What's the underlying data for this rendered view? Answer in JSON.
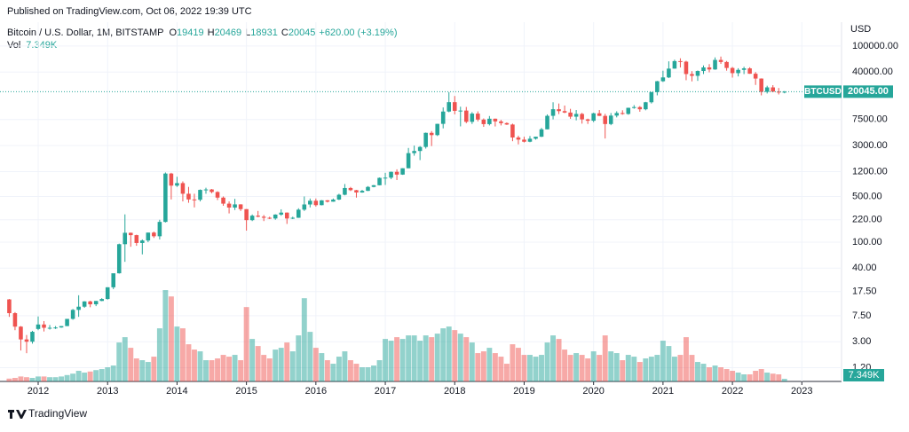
{
  "chart_data": {
    "type": "candlestick",
    "published": "Published on TradingView.com, Oct 06, 2022 19:39 UTC",
    "title": "Bitcoin / U.S. Dollar, 1M, BITSTAMP",
    "ohlc_legend": [
      {
        "label": "O",
        "value": "19419"
      },
      {
        "label": "H",
        "value": "20469"
      },
      {
        "label": "L",
        "value": "18931"
      },
      {
        "label": "C",
        "value": "20045"
      }
    ],
    "change": "+620.00 (+3.19%)",
    "volume_name": "Vol",
    "volume_value": "7.349K",
    "currency": "USD",
    "symbol": "BTCUSD",
    "last_price": {
      "value": 20045,
      "label": "20045.00"
    },
    "brand": "TradingView",
    "up_color": "#26a69a",
    "down_color": "#ef5350",
    "log_scale": true,
    "grid": true,
    "xlim": [
      "2011-07",
      "2023-07"
    ],
    "xticks": [
      2012,
      2013,
      2014,
      2015,
      2016,
      2017,
      2018,
      2019,
      2020,
      2021,
      2022,
      2023
    ],
    "ylim": [
      0.74,
      231700
    ],
    "yticks": [
      {
        "value": 100000,
        "label": "100000.00"
      },
      {
        "value": 40000,
        "label": "40000.00"
      },
      {
        "value": 7500,
        "label": "7500.00"
      },
      {
        "value": 3000,
        "label": "3000.00"
      },
      {
        "value": 1200,
        "label": "1200.00"
      },
      {
        "value": 500,
        "label": "500.00"
      },
      {
        "value": 220,
        "label": "220.00"
      },
      {
        "value": 100,
        "label": "100.00"
      },
      {
        "value": 40,
        "label": "40.00"
      },
      {
        "value": 17.5,
        "label": "17.50"
      },
      {
        "value": 7.5,
        "label": "7.50"
      },
      {
        "value": 3,
        "label": "3.00"
      },
      {
        "value": 1.2,
        "label": "1.20"
      }
    ],
    "x": [
      "2011-08",
      "2011-09",
      "2011-10",
      "2011-11",
      "2011-12",
      "2012-01",
      "2012-02",
      "2012-03",
      "2012-04",
      "2012-05",
      "2012-06",
      "2012-07",
      "2012-08",
      "2012-09",
      "2012-10",
      "2012-11",
      "2012-12",
      "2013-01",
      "2013-02",
      "2013-03",
      "2013-04",
      "2013-05",
      "2013-06",
      "2013-07",
      "2013-08",
      "2013-09",
      "2013-10",
      "2013-11",
      "2013-12",
      "2014-01",
      "2014-02",
      "2014-03",
      "2014-04",
      "2014-05",
      "2014-06",
      "2014-07",
      "2014-08",
      "2014-09",
      "2014-10",
      "2014-11",
      "2014-12",
      "2015-01",
      "2015-02",
      "2015-03",
      "2015-04",
      "2015-05",
      "2015-06",
      "2015-07",
      "2015-08",
      "2015-09",
      "2015-10",
      "2015-11",
      "2015-12",
      "2016-01",
      "2016-02",
      "2016-03",
      "2016-04",
      "2016-05",
      "2016-06",
      "2016-07",
      "2016-08",
      "2016-09",
      "2016-10",
      "2016-11",
      "2016-12",
      "2017-01",
      "2017-02",
      "2017-03",
      "2017-04",
      "2017-05",
      "2017-06",
      "2017-07",
      "2017-08",
      "2017-09",
      "2017-10",
      "2017-11",
      "2017-12",
      "2018-01",
      "2018-02",
      "2018-03",
      "2018-04",
      "2018-05",
      "2018-06",
      "2018-07",
      "2018-08",
      "2018-09",
      "2018-10",
      "2018-11",
      "2018-12",
      "2019-01",
      "2019-02",
      "2019-03",
      "2019-04",
      "2019-05",
      "2019-06",
      "2019-07",
      "2019-08",
      "2019-09",
      "2019-10",
      "2019-11",
      "2019-12",
      "2020-01",
      "2020-02",
      "2020-03",
      "2020-04",
      "2020-05",
      "2020-06",
      "2020-07",
      "2020-08",
      "2020-09",
      "2020-10",
      "2020-11",
      "2020-12",
      "2021-01",
      "2021-02",
      "2021-03",
      "2021-04",
      "2021-05",
      "2021-06",
      "2021-07",
      "2021-08",
      "2021-09",
      "2021-10",
      "2021-11",
      "2021-12",
      "2022-01",
      "2022-02",
      "2022-03",
      "2022-04",
      "2022-05",
      "2022-06",
      "2022-07",
      "2022-08",
      "2022-09",
      "2022-10"
    ],
    "ohlc": [
      [
        13.3,
        13.5,
        7.2,
        8.2
      ],
      [
        8.2,
        8.5,
        4.5,
        5.1
      ],
      [
        5.1,
        5.2,
        2.2,
        3.25
      ],
      [
        3.25,
        3.8,
        2.0,
        3.0
      ],
      [
        3.0,
        4.4,
        2.8,
        4.25
      ],
      [
        4.7,
        7.3,
        4.5,
        5.5
      ],
      [
        5.5,
        6.2,
        4.3,
        4.9
      ],
      [
        4.9,
        5.4,
        4.6,
        4.9
      ],
      [
        4.9,
        5.2,
        4.7,
        4.95
      ],
      [
        4.95,
        5.2,
        4.9,
        5.2
      ],
      [
        5.2,
        6.7,
        5.2,
        6.7
      ],
      [
        6.7,
        9.5,
        6.5,
        9.2
      ],
      [
        9.2,
        15.4,
        7.2,
        10.3
      ],
      [
        10.3,
        12.5,
        9.9,
        12.4
      ],
      [
        12.4,
        12.7,
        10.1,
        11.2
      ],
      [
        11.2,
        12.6,
        10.5,
        12.6
      ],
      [
        12.6,
        13.9,
        12.5,
        13.5
      ],
      [
        13.5,
        20.4,
        13.2,
        20.4
      ],
      [
        20.4,
        31.9,
        19.1,
        33.4
      ],
      [
        33.4,
        95,
        33,
        93
      ],
      [
        93,
        266,
        50,
        139
      ],
      [
        139,
        140,
        85,
        128
      ],
      [
        128,
        130,
        88,
        97
      ],
      [
        97,
        110,
        65,
        106
      ],
      [
        106,
        140,
        100,
        140
      ],
      [
        140,
        145,
        116,
        123
      ],
      [
        123,
        220,
        110,
        204
      ],
      [
        204,
        1163,
        200,
        1120
      ],
      [
        1120,
        1150,
        450,
        732
      ],
      [
        732,
        1000,
        700,
        800
      ],
      [
        800,
        850,
        420,
        550
      ],
      [
        550,
        700,
        400,
        450
      ],
      [
        450,
        550,
        340,
        445
      ],
      [
        445,
        640,
        420,
        630
      ],
      [
        630,
        680,
        550,
        640
      ],
      [
        640,
        650,
        560,
        585
      ],
      [
        585,
        600,
        440,
        480
      ],
      [
        480,
        500,
        360,
        388
      ],
      [
        388,
        420,
        275,
        338
      ],
      [
        338,
        460,
        310,
        378
      ],
      [
        378,
        380,
        300,
        320
      ],
      [
        320,
        320,
        150,
        217
      ],
      [
        217,
        265,
        210,
        254
      ],
      [
        254,
        300,
        240,
        245
      ],
      [
        245,
        260,
        210,
        236
      ],
      [
        236,
        245,
        225,
        230
      ],
      [
        230,
        267,
        220,
        264
      ],
      [
        264,
        318,
        253,
        283
      ],
      [
        283,
        285,
        190,
        230
      ],
      [
        230,
        245,
        225,
        236
      ],
      [
        236,
        330,
        235,
        314
      ],
      [
        314,
        500,
        300,
        377
      ],
      [
        377,
        465,
        340,
        430
      ],
      [
        430,
        465,
        350,
        368
      ],
      [
        368,
        440,
        365,
        436
      ],
      [
        436,
        440,
        405,
        416
      ],
      [
        416,
        465,
        415,
        448
      ],
      [
        448,
        550,
        440,
        531
      ],
      [
        531,
        775,
        520,
        673
      ],
      [
        673,
        700,
        605,
        624
      ],
      [
        624,
        630,
        480,
        575
      ],
      [
        575,
        630,
        570,
        609
      ],
      [
        609,
        720,
        605,
        700
      ],
      [
        700,
        750,
        690,
        742
      ],
      [
        742,
        975,
        740,
        963
      ],
      [
        963,
        1150,
        750,
        970
      ],
      [
        970,
        1200,
        920,
        1190
      ],
      [
        1190,
        1300,
        890,
        1080
      ],
      [
        1080,
        1350,
        1070,
        1350
      ],
      [
        1350,
        2760,
        1350,
        2300
      ],
      [
        2300,
        3000,
        2100,
        2480
      ],
      [
        2480,
        2950,
        1800,
        2860
      ],
      [
        2860,
        4750,
        2700,
        4700
      ],
      [
        4700,
        5000,
        2950,
        4340
      ],
      [
        4340,
        6470,
        4200,
        6450
      ],
      [
        6450,
        11500,
        5500,
        9950
      ],
      [
        9950,
        19700,
        9700,
        13850
      ],
      [
        13850,
        17200,
        9000,
        10200
      ],
      [
        10200,
        11800,
        5900,
        10300
      ],
      [
        10300,
        11700,
        6600,
        6930
      ],
      [
        6930,
        9750,
        6430,
        9250
      ],
      [
        9250,
        10000,
        7040,
        7500
      ],
      [
        7500,
        7800,
        5800,
        6390
      ],
      [
        6390,
        8500,
        6100,
        7730
      ],
      [
        7730,
        7760,
        5880,
        7030
      ],
      [
        7030,
        7400,
        6100,
        6620
      ],
      [
        6620,
        6800,
        6200,
        6300
      ],
      [
        6300,
        6500,
        3500,
        3990
      ],
      [
        3990,
        4250,
        3130,
        3700
      ],
      [
        3700,
        4100,
        3350,
        3440
      ],
      [
        3440,
        4200,
        3380,
        3820
      ],
      [
        3820,
        4100,
        3700,
        4100
      ],
      [
        4100,
        5600,
        4050,
        5320
      ],
      [
        5320,
        9000,
        5320,
        8560
      ],
      [
        8560,
        13800,
        7550,
        10800
      ],
      [
        10800,
        13200,
        9100,
        10100
      ],
      [
        10100,
        12300,
        9400,
        9600
      ],
      [
        9600,
        10950,
        7700,
        8300
      ],
      [
        8300,
        10500,
        7300,
        9150
      ],
      [
        9150,
        9500,
        6500,
        7550
      ],
      [
        7550,
        7750,
        6430,
        7200
      ],
      [
        7200,
        9550,
        6850,
        9350
      ],
      [
        9350,
        10500,
        8500,
        8540
      ],
      [
        8540,
        9180,
        3850,
        6410
      ],
      [
        6410,
        9450,
        6150,
        8630
      ],
      [
        8630,
        10050,
        8100,
        9450
      ],
      [
        9450,
        10400,
        8900,
        9140
      ],
      [
        9140,
        11400,
        8900,
        11350
      ],
      [
        11350,
        12480,
        10980,
        11650
      ],
      [
        11650,
        12070,
        9880,
        10780
      ],
      [
        10780,
        14000,
        10400,
        13800
      ],
      [
        13800,
        19800,
        13200,
        19700
      ],
      [
        19700,
        29300,
        17600,
        28950
      ],
      [
        28950,
        41950,
        28200,
        33100
      ],
      [
        33100,
        58350,
        32300,
        45150
      ],
      [
        45150,
        61800,
        45000,
        58800
      ],
      [
        58800,
        64900,
        47000,
        57700
      ],
      [
        57700,
        59500,
        30000,
        37300
      ],
      [
        37300,
        41300,
        28800,
        35000
      ],
      [
        35000,
        42300,
        29300,
        41500
      ],
      [
        41500,
        50500,
        37300,
        47100
      ],
      [
        47100,
        52900,
        39600,
        43800
      ],
      [
        43800,
        67000,
        43300,
        61300
      ],
      [
        61300,
        69000,
        53300,
        57000
      ],
      [
        57000,
        59100,
        42000,
        46200
      ],
      [
        46200,
        47900,
        32900,
        38500
      ],
      [
        38500,
        45800,
        34300,
        43200
      ],
      [
        43200,
        48200,
        37200,
        45500
      ],
      [
        45500,
        47400,
        37600,
        37700
      ],
      [
        37700,
        40000,
        25400,
        31800
      ],
      [
        31800,
        32000,
        17600,
        19900
      ],
      [
        19900,
        24700,
        18800,
        23300
      ],
      [
        23300,
        25200,
        19600,
        20050
      ],
      [
        20050,
        22800,
        18150,
        19420
      ],
      [
        19419,
        20469,
        18931,
        20045
      ]
    ],
    "volume": [
      8,
      10,
      14,
      12,
      10,
      14,
      14,
      12,
      12,
      14,
      18,
      22,
      30,
      25,
      28,
      32,
      35,
      40,
      45,
      110,
      125,
      95,
      65,
      60,
      55,
      70,
      150,
      258,
      240,
      155,
      150,
      105,
      90,
      85,
      60,
      60,
      65,
      75,
      70,
      75,
      60,
      210,
      120,
      100,
      75,
      65,
      90,
      95,
      110,
      85,
      130,
      235,
      140,
      95,
      80,
      60,
      50,
      70,
      85,
      60,
      50,
      40,
      40,
      45,
      60,
      120,
      115,
      125,
      120,
      130,
      130,
      115,
      130,
      125,
      135,
      150,
      155,
      145,
      135,
      125,
      110,
      80,
      85,
      95,
      80,
      70,
      50,
      105,
      95,
      75,
      75,
      70,
      75,
      110,
      130,
      120,
      90,
      75,
      80,
      75,
      65,
      85,
      75,
      130,
      85,
      80,
      60,
      75,
      70,
      55,
      65,
      70,
      75,
      115,
      100,
      70,
      75,
      125,
      75,
      55,
      50,
      40,
      45,
      40,
      35,
      30,
      25,
      20,
      20,
      30,
      35,
      25,
      22,
      20,
      7.349
    ]
  }
}
